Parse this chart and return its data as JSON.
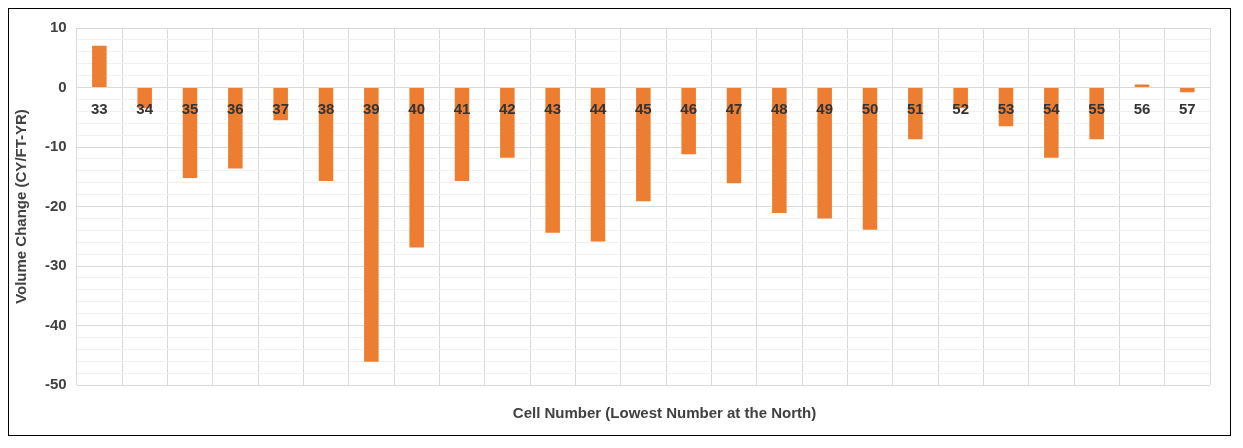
{
  "chart_data": {
    "type": "bar",
    "xlabel": "Cell Number (Lowest Number at the North)",
    "ylabel": "Volume Change (CY/FT-YR)",
    "categories": [
      "33",
      "34",
      "35",
      "36",
      "37",
      "38",
      "39",
      "40",
      "41",
      "42",
      "43",
      "44",
      "45",
      "46",
      "47",
      "48",
      "49",
      "50",
      "51",
      "52",
      "53",
      "54",
      "55",
      "56",
      "57"
    ],
    "values": [
      7,
      -3.5,
      -15.2,
      -13.6,
      -5.5,
      -15.7,
      -46.1,
      -26.9,
      -15.7,
      -11.8,
      -24.4,
      -25.9,
      -19.1,
      -11.2,
      -16.1,
      -21.1,
      -22.0,
      -23.9,
      -8.7,
      -3.5,
      -6.5,
      -11.8,
      -8.7,
      0.5,
      -0.8
    ],
    "color": "#ed7d31",
    "ylim": [
      -50,
      10
    ],
    "yticks": [
      -50,
      {
        "value": -48,
        "label": null
      },
      {
        "value": -46,
        "label": null
      },
      {
        "value": -44,
        "label": null
      },
      {
        "value": -42,
        "label": null
      },
      -40,
      {
        "value": -38,
        "label": null
      },
      {
        "value": -36,
        "label": null
      },
      {
        "value": -34,
        "label": null
      },
      {
        "value": -32,
        "label": null
      },
      -30,
      {
        "value": -28,
        "label": null
      },
      {
        "value": -26,
        "label": null
      },
      {
        "value": -24,
        "label": null
      },
      {
        "value": -22,
        "label": null
      },
      -20,
      {
        "value": -18,
        "label": null
      },
      {
        "value": -16,
        "label": null
      },
      {
        "value": -14,
        "label": null
      },
      {
        "value": -12,
        "label": null
      },
      -10,
      {
        "value": -8,
        "label": null
      },
      {
        "value": -6,
        "label": null
      },
      {
        "value": -4,
        "label": null
      },
      {
        "value": -2,
        "label": null
      },
      0,
      {
        "value": 2,
        "label": null
      },
      {
        "value": 4,
        "label": null
      },
      {
        "value": 6,
        "label": null
      },
      {
        "value": 8,
        "label": null
      },
      10
    ],
    "grid": true
  }
}
